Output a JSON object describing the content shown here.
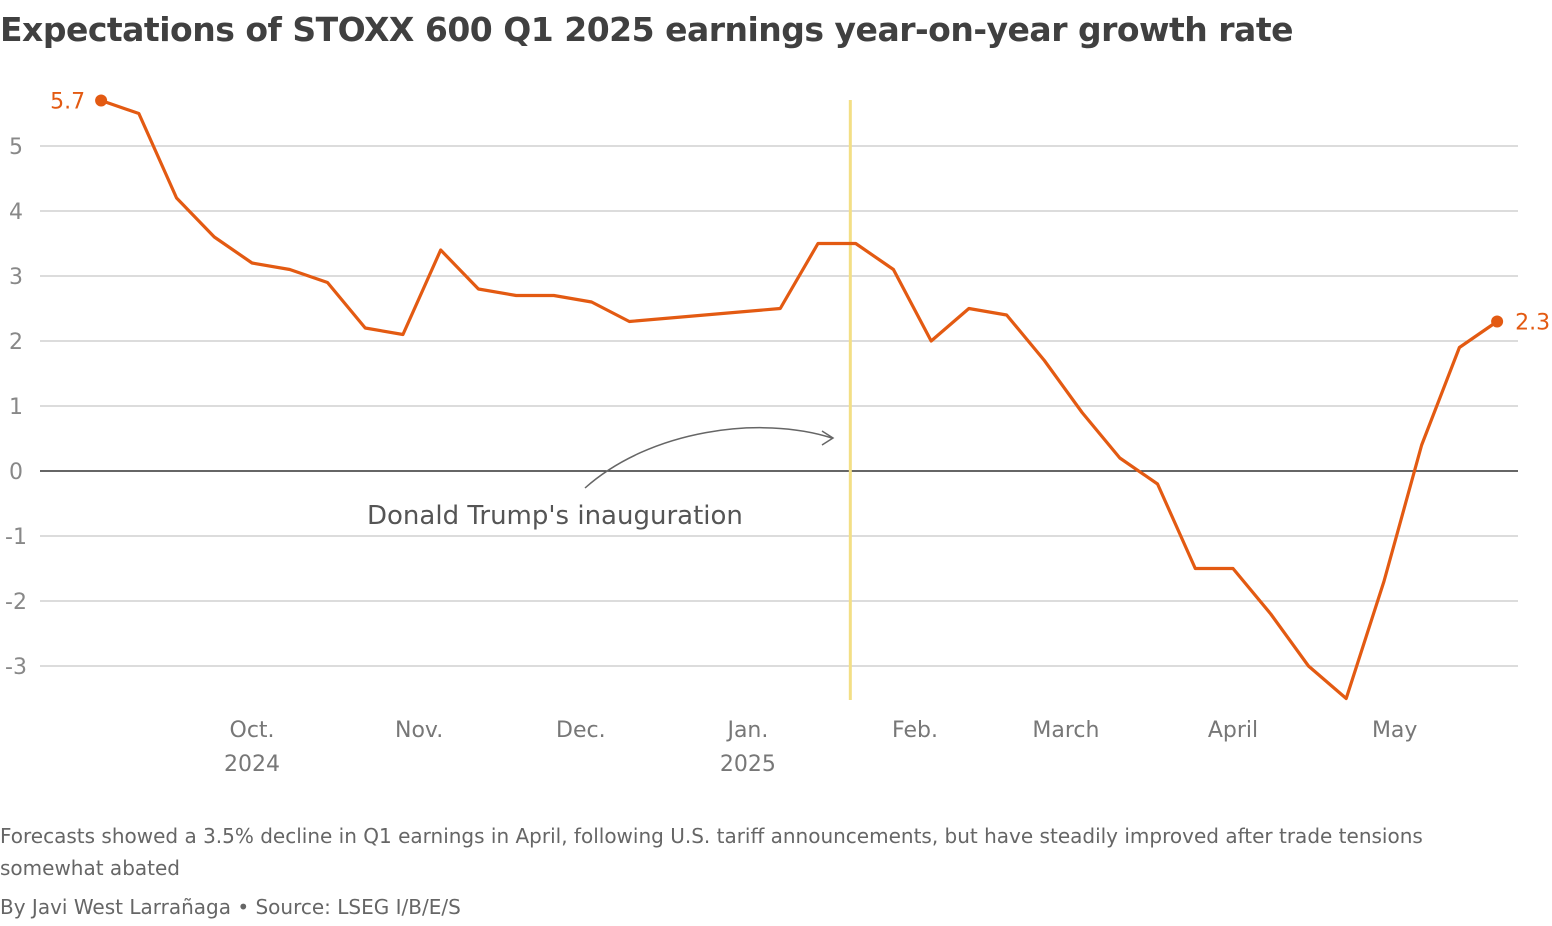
{
  "chart_data": {
    "type": "line",
    "title": "Expectations of STOXX 600 Q1 2025 earnings year-on-year growth rate",
    "xlabel": "",
    "ylabel": "",
    "ylim": [
      -3.6,
      5.8
    ],
    "yticks": [
      5,
      4,
      3,
      2,
      1,
      0,
      -1,
      -2,
      -3
    ],
    "grid": true,
    "xtick_labels": [
      {
        "date": "2024-10-01",
        "label": "Oct.",
        "sublabel": "2024"
      },
      {
        "date": "2024-11-01",
        "label": "Nov."
      },
      {
        "date": "2024-12-01",
        "label": "Dec."
      },
      {
        "date": "2025-01-01",
        "label": "Jan.",
        "sublabel": "2025"
      },
      {
        "date": "2025-02-01",
        "label": "Feb."
      },
      {
        "date": "2025-03-01",
        "label": "March"
      },
      {
        "date": "2025-04-01",
        "label": "April"
      },
      {
        "date": "2025-05-01",
        "label": "May"
      }
    ],
    "series": [
      {
        "color": "#e35a12",
        "x": [
          "2024-09-03",
          "2024-09-10",
          "2024-09-17",
          "2024-09-24",
          "2024-10-01",
          "2024-10-08",
          "2024-10-15",
          "2024-10-22",
          "2024-10-29",
          "2024-11-05",
          "2024-11-12",
          "2024-11-19",
          "2024-11-26",
          "2024-12-03",
          "2024-12-10",
          "2024-12-17",
          "2024-12-24",
          "2024-12-31",
          "2025-01-07",
          "2025-01-14",
          "2025-01-21",
          "2025-01-28",
          "2025-02-04",
          "2025-02-11",
          "2025-02-18",
          "2025-02-25",
          "2025-03-04",
          "2025-03-11",
          "2025-03-18",
          "2025-03-25",
          "2025-04-01",
          "2025-04-08",
          "2025-04-15",
          "2025-04-22",
          "2025-04-29",
          "2025-05-06",
          "2025-05-13",
          "2025-05-20"
        ],
        "values": [
          5.7,
          5.5,
          4.2,
          3.6,
          3.2,
          3.1,
          2.9,
          2.2,
          2.1,
          3.4,
          2.8,
          2.7,
          2.7,
          2.6,
          2.3,
          2.35,
          2.4,
          2.45,
          2.5,
          3.5,
          3.5,
          3.1,
          2.0,
          2.5,
          2.4,
          1.7,
          0.9,
          0.2,
          -0.2,
          -1.5,
          -1.5,
          -2.2,
          -3.0,
          -3.5,
          -1.7,
          0.4,
          1.9,
          2.3
        ]
      }
    ],
    "end_labels": {
      "first": "5.7",
      "last": "2.3"
    },
    "annotation": {
      "date": "2025-01-20",
      "text": "Donald Trump's inauguration",
      "line_color": "#f3df85"
    }
  },
  "caption": "Forecasts showed a 3.5% decline in Q1 earnings in April, following U.S. tariff announcements, but have steadily improved after trade tensions somewhat abated",
  "byline": "By Javi West Larrañaga • Source: LSEG I/B/E/S"
}
